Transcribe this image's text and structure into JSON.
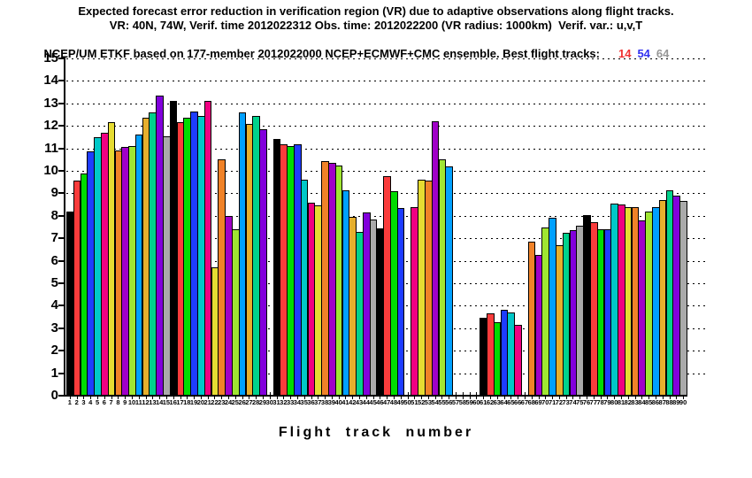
{
  "title": {
    "line1": "Expected forecast error reduction in verification region (VR) due to adaptive observations along flight tracks.",
    "line2": "VR: 40N, 74W, Verif. time 2012022312 Obs. time: 2012022200 (VR radius: 1000km)  Verif. var.: u,v,T",
    "line3_prefix": "NCEP/UM ETKF based on 177-member 2012022000 NCEP+ECMWF+CMC ensemble. Best flight tracks:",
    "best_tracks": [
      {
        "label": "14",
        "color": "#f03232"
      },
      {
        "label": "54",
        "color": "#3232f0"
      },
      {
        "label": "64",
        "color": "#969696"
      }
    ]
  },
  "chart_data": {
    "type": "bar",
    "xlabel": "Flight track number",
    "ylabel": "",
    "ylim": [
      0,
      15
    ],
    "yticks": [
      0,
      1,
      2,
      3,
      4,
      5,
      6,
      7,
      8,
      9,
      10,
      11,
      12,
      13,
      14,
      15
    ],
    "grid": "horizontal dotted lines at every integer 1-15",
    "legend_position": "none",
    "bar_outline_color": "#000000",
    "palette_note": "bar fill color cycles through 15 colors by track number: palette[(n-1) mod 15]",
    "palette": [
      "#000000",
      "#fa3c3c",
      "#00dc00",
      "#1e3cff",
      "#00c8c8",
      "#f00082",
      "#e6dc32",
      "#f08228",
      "#a000c8",
      "#a0e632",
      "#00a0ff",
      "#e6af2d",
      "#00d28c",
      "#8200dc",
      "#aaaaaa"
    ],
    "tracks_format": [
      "track_number",
      "value (null = no bar drawn, tick and label still shown)"
    ],
    "tracks": [
      [
        1,
        8.2
      ],
      [
        2,
        9.55
      ],
      [
        3,
        9.9
      ],
      [
        4,
        10.85
      ],
      [
        5,
        11.5
      ],
      [
        6,
        11.7
      ],
      [
        7,
        12.15
      ],
      [
        8,
        10.9
      ],
      [
        9,
        11.05
      ],
      [
        10,
        11.1
      ],
      [
        11,
        11.6
      ],
      [
        12,
        12.35
      ],
      [
        13,
        12.6
      ],
      [
        14,
        13.35
      ],
      [
        15,
        11.55
      ],
      [
        16,
        13.1
      ],
      [
        17,
        12.15
      ],
      [
        18,
        12.35
      ],
      [
        19,
        12.65
      ],
      [
        20,
        12.45
      ],
      [
        21,
        13.1
      ],
      [
        22,
        5.7
      ],
      [
        23,
        10.5
      ],
      [
        24,
        8.0
      ],
      [
        25,
        7.4
      ],
      [
        26,
        12.6
      ],
      [
        27,
        12.1
      ],
      [
        28,
        12.45
      ],
      [
        29,
        11.85
      ],
      [
        30,
        null
      ],
      [
        31,
        11.4
      ],
      [
        32,
        11.2
      ],
      [
        33,
        11.1
      ],
      [
        34,
        11.2
      ],
      [
        35,
        9.6
      ],
      [
        36,
        8.6
      ],
      [
        37,
        8.45
      ],
      [
        38,
        10.45
      ],
      [
        39,
        10.35
      ],
      [
        40,
        10.25
      ],
      [
        41,
        9.15
      ],
      [
        42,
        7.95
      ],
      [
        43,
        7.3
      ],
      [
        44,
        8.15
      ],
      [
        45,
        7.85
      ],
      [
        46,
        7.45
      ],
      [
        47,
        9.75
      ],
      [
        48,
        9.1
      ],
      [
        49,
        8.35
      ],
      [
        50,
        null
      ],
      [
        51,
        8.4
      ],
      [
        52,
        9.6
      ],
      [
        53,
        9.55
      ],
      [
        54,
        12.2
      ],
      [
        55,
        10.5
      ],
      [
        56,
        10.2
      ],
      [
        57,
        null
      ],
      [
        58,
        null
      ],
      [
        59,
        null
      ],
      [
        60,
        null
      ],
      [
        61,
        3.45
      ],
      [
        62,
        3.65
      ],
      [
        63,
        3.25
      ],
      [
        64,
        3.8
      ],
      [
        65,
        3.7
      ],
      [
        66,
        3.15
      ],
      [
        67,
        null
      ],
      [
        68,
        6.85
      ],
      [
        69,
        6.25
      ],
      [
        70,
        7.5
      ],
      [
        71,
        7.9
      ],
      [
        72,
        6.7
      ],
      [
        73,
        7.25
      ],
      [
        74,
        7.35
      ],
      [
        75,
        7.55
      ],
      [
        76,
        8.05
      ],
      [
        77,
        7.7
      ],
      [
        78,
        7.4
      ],
      [
        79,
        7.4
      ],
      [
        80,
        8.55
      ],
      [
        81,
        8.5
      ],
      [
        82,
        8.4
      ],
      [
        83,
        8.4
      ],
      [
        84,
        7.8
      ],
      [
        85,
        8.2
      ],
      [
        86,
        8.4
      ],
      [
        87,
        8.7
      ],
      [
        88,
        9.15
      ],
      [
        89,
        8.9
      ],
      [
        90,
        8.65
      ]
    ]
  }
}
